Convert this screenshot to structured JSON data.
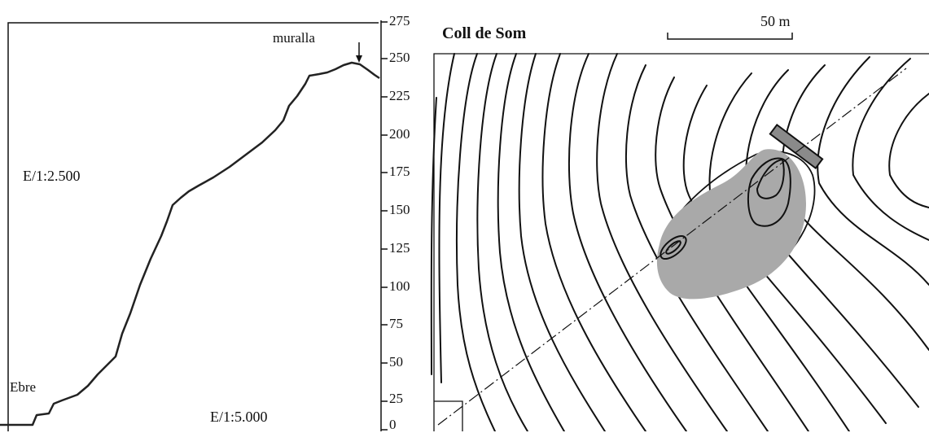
{
  "profile": {
    "scale_label": "E/1:2.500",
    "river_label": "Ebre",
    "wall_label": "muralla",
    "bottom_scale_label": "E/1:5.000"
  },
  "axis": {
    "ticks": [
      "275",
      "250",
      "225",
      "200",
      "175",
      "150",
      "125",
      "100",
      "75",
      "50",
      "25",
      "0"
    ]
  },
  "map": {
    "title": "Coll de Som",
    "scale_bar_label": "50 m",
    "site_fill_color": "#a9a9a9"
  }
}
